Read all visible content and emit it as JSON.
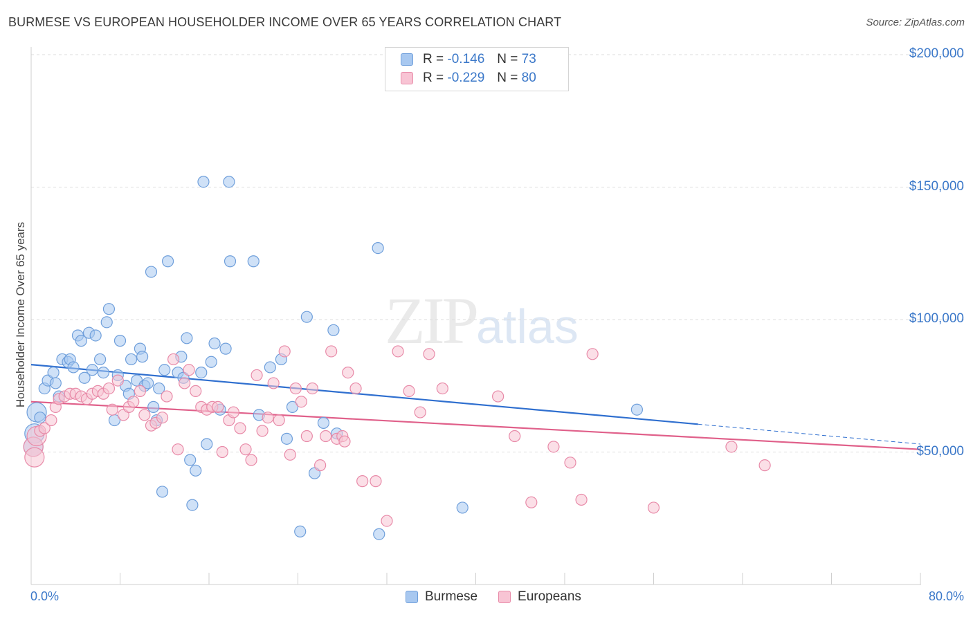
{
  "title": "BURMESE VS EUROPEAN HOUSEHOLDER INCOME OVER 65 YEARS CORRELATION CHART",
  "source": "Source: ZipAtlas.com",
  "watermark": {
    "zip": "ZIP",
    "atlas": "atlas"
  },
  "stats": [
    {
      "r_label": "R =",
      "r": "-0.146",
      "n_label": "N =",
      "n": "73",
      "color": "#a8c8f0",
      "border": "#6f9fdb"
    },
    {
      "r_label": "R =",
      "r": "-0.229",
      "n_label": "N =",
      "n": "80",
      "color": "#f8c4d4",
      "border": "#e88aa8"
    }
  ],
  "chart_data": {
    "type": "scatter",
    "title": "BURMESE VS EUROPEAN HOUSEHOLDER INCOME OVER 65 YEARS CORRELATION CHART",
    "xlabel": "",
    "ylabel": "Householder Income Over 65 years",
    "xlim": [
      0,
      80
    ],
    "ylim": [
      0,
      205000
    ],
    "x_tick_labels": [
      "0.0%",
      "80.0%"
    ],
    "y_ticks": [
      50000,
      100000,
      150000,
      200000
    ],
    "y_tick_labels": [
      "$50,000",
      "$100,000",
      "$150,000",
      "$200,000"
    ],
    "grid": "horizontal dashed",
    "legend_position": "bottom-center",
    "series": [
      {
        "name": "Burmese",
        "color": "#6f9fdb",
        "fill": "#a8c8f0",
        "trend": {
          "x": [
            0,
            60
          ],
          "y": [
            83000,
            60500
          ],
          "dashed_x": [
            60,
            80
          ],
          "dashed_y": [
            60500,
            53000
          ],
          "color": "#2f6fcf"
        },
        "points": [
          [
            0.5,
            65000
          ],
          [
            0.8,
            63000
          ],
          [
            1.2,
            74000
          ],
          [
            1.5,
            77000
          ],
          [
            2,
            80000
          ],
          [
            2.2,
            76000
          ],
          [
            2.5,
            71000
          ],
          [
            2.8,
            85000
          ],
          [
            3.3,
            84000
          ],
          [
            3.5,
            85000
          ],
          [
            3.8,
            82000
          ],
          [
            4.2,
            94000
          ],
          [
            4.5,
            92000
          ],
          [
            4.8,
            78000
          ],
          [
            5.2,
            95000
          ],
          [
            5.5,
            81000
          ],
          [
            5.8,
            94000
          ],
          [
            6.2,
            85000
          ],
          [
            6.5,
            80000
          ],
          [
            6.8,
            99000
          ],
          [
            7,
            104000
          ],
          [
            7.5,
            62000
          ],
          [
            7.8,
            79000
          ],
          [
            8,
            92000
          ],
          [
            8.5,
            75000
          ],
          [
            8.8,
            72000
          ],
          [
            9,
            85000
          ],
          [
            9.5,
            77000
          ],
          [
            9.8,
            89000
          ],
          [
            10,
            86000
          ],
          [
            10.2,
            75000
          ],
          [
            10.5,
            76000
          ],
          [
            10.8,
            118000
          ],
          [
            11,
            67000
          ],
          [
            11.3,
            62000
          ],
          [
            11.5,
            74000
          ],
          [
            11.8,
            35000
          ],
          [
            12,
            81000
          ],
          [
            12.3,
            122000
          ],
          [
            13.2,
            80000
          ],
          [
            13.5,
            86000
          ],
          [
            13.7,
            78000
          ],
          [
            14,
            93000
          ],
          [
            14.3,
            47000
          ],
          [
            14.8,
            43000
          ],
          [
            14.5,
            30000
          ],
          [
            15.3,
            80000
          ],
          [
            15.5,
            152000
          ],
          [
            15.8,
            53000
          ],
          [
            16.2,
            84000
          ],
          [
            16.5,
            91000
          ],
          [
            17,
            66000
          ],
          [
            17.5,
            89000
          ],
          [
            17.8,
            152000
          ],
          [
            17.9,
            122000
          ],
          [
            20,
            122000
          ],
          [
            20.5,
            64000
          ],
          [
            21.5,
            82000
          ],
          [
            22.5,
            85000
          ],
          [
            23,
            55000
          ],
          [
            23.5,
            67000
          ],
          [
            24.2,
            20000
          ],
          [
            24.8,
            101000
          ],
          [
            25.5,
            42000
          ],
          [
            26.3,
            61000
          ],
          [
            27.2,
            96000
          ],
          [
            27.5,
            57000
          ],
          [
            31.2,
            127000
          ],
          [
            31.3,
            19000
          ],
          [
            38.8,
            29000
          ],
          [
            54.5,
            66000
          ],
          [
            0.3,
            57000
          ],
          [
            0.2,
            52000
          ]
        ]
      },
      {
        "name": "Europeans",
        "color": "#e88aa8",
        "fill": "#f8c4d4",
        "trend": {
          "x": [
            0,
            80
          ],
          "y": [
            69000,
            51000
          ],
          "color": "#e0608a"
        },
        "points": [
          [
            0.2,
            52000
          ],
          [
            0.3,
            48000
          ],
          [
            0.5,
            56000
          ],
          [
            0.8,
            58000
          ],
          [
            1.2,
            59000
          ],
          [
            1.8,
            62000
          ],
          [
            2.2,
            67000
          ],
          [
            2.5,
            70000
          ],
          [
            3,
            71000
          ],
          [
            3.5,
            72000
          ],
          [
            4,
            72000
          ],
          [
            4.5,
            71000
          ],
          [
            5,
            70000
          ],
          [
            5.5,
            72000
          ],
          [
            6,
            73000
          ],
          [
            6.5,
            72000
          ],
          [
            7,
            74000
          ],
          [
            7.3,
            66000
          ],
          [
            7.8,
            77000
          ],
          [
            8.3,
            64000
          ],
          [
            8.8,
            67000
          ],
          [
            9.2,
            69000
          ],
          [
            9.8,
            73000
          ],
          [
            10.2,
            64000
          ],
          [
            10.8,
            60000
          ],
          [
            11.2,
            61000
          ],
          [
            11.8,
            63000
          ],
          [
            12.2,
            71000
          ],
          [
            12.8,
            85000
          ],
          [
            13.2,
            51000
          ],
          [
            13.8,
            76000
          ],
          [
            14.2,
            81000
          ],
          [
            14.8,
            73000
          ],
          [
            15.3,
            67000
          ],
          [
            15.8,
            66000
          ],
          [
            16.3,
            67000
          ],
          [
            16.8,
            67000
          ],
          [
            17.2,
            50000
          ],
          [
            17.8,
            62000
          ],
          [
            18.2,
            65000
          ],
          [
            18.8,
            59000
          ],
          [
            19.3,
            51000
          ],
          [
            19.8,
            47000
          ],
          [
            20.3,
            79000
          ],
          [
            20.8,
            58000
          ],
          [
            21.3,
            63000
          ],
          [
            21.8,
            76000
          ],
          [
            22.3,
            62000
          ],
          [
            22.8,
            88000
          ],
          [
            23.3,
            49000
          ],
          [
            23.8,
            74000
          ],
          [
            24.3,
            69000
          ],
          [
            24.8,
            56000
          ],
          [
            25.3,
            74000
          ],
          [
            26,
            45000
          ],
          [
            26.5,
            56000
          ],
          [
            27,
            88000
          ],
          [
            27.5,
            55000
          ],
          [
            28,
            56000
          ],
          [
            28.5,
            80000
          ],
          [
            29.2,
            74000
          ],
          [
            29.8,
            39000
          ],
          [
            31,
            39000
          ],
          [
            32,
            24000
          ],
          [
            33,
            88000
          ],
          [
            34,
            73000
          ],
          [
            35,
            65000
          ],
          [
            35.8,
            87000
          ],
          [
            37,
            74000
          ],
          [
            42,
            71000
          ],
          [
            43.5,
            56000
          ],
          [
            45,
            31000
          ],
          [
            47,
            52000
          ],
          [
            48.5,
            46000
          ],
          [
            49.5,
            32000
          ],
          [
            50.5,
            87000
          ],
          [
            56,
            29000
          ],
          [
            63,
            52000
          ],
          [
            66,
            45000
          ],
          [
            28.2,
            54000
          ]
        ]
      }
    ]
  },
  "legend": [
    {
      "label": "Burmese",
      "color": "#a8c8f0",
      "border": "#6f9fdb"
    },
    {
      "label": "Europeans",
      "color": "#f8c4d4",
      "border": "#e88aa8"
    }
  ]
}
